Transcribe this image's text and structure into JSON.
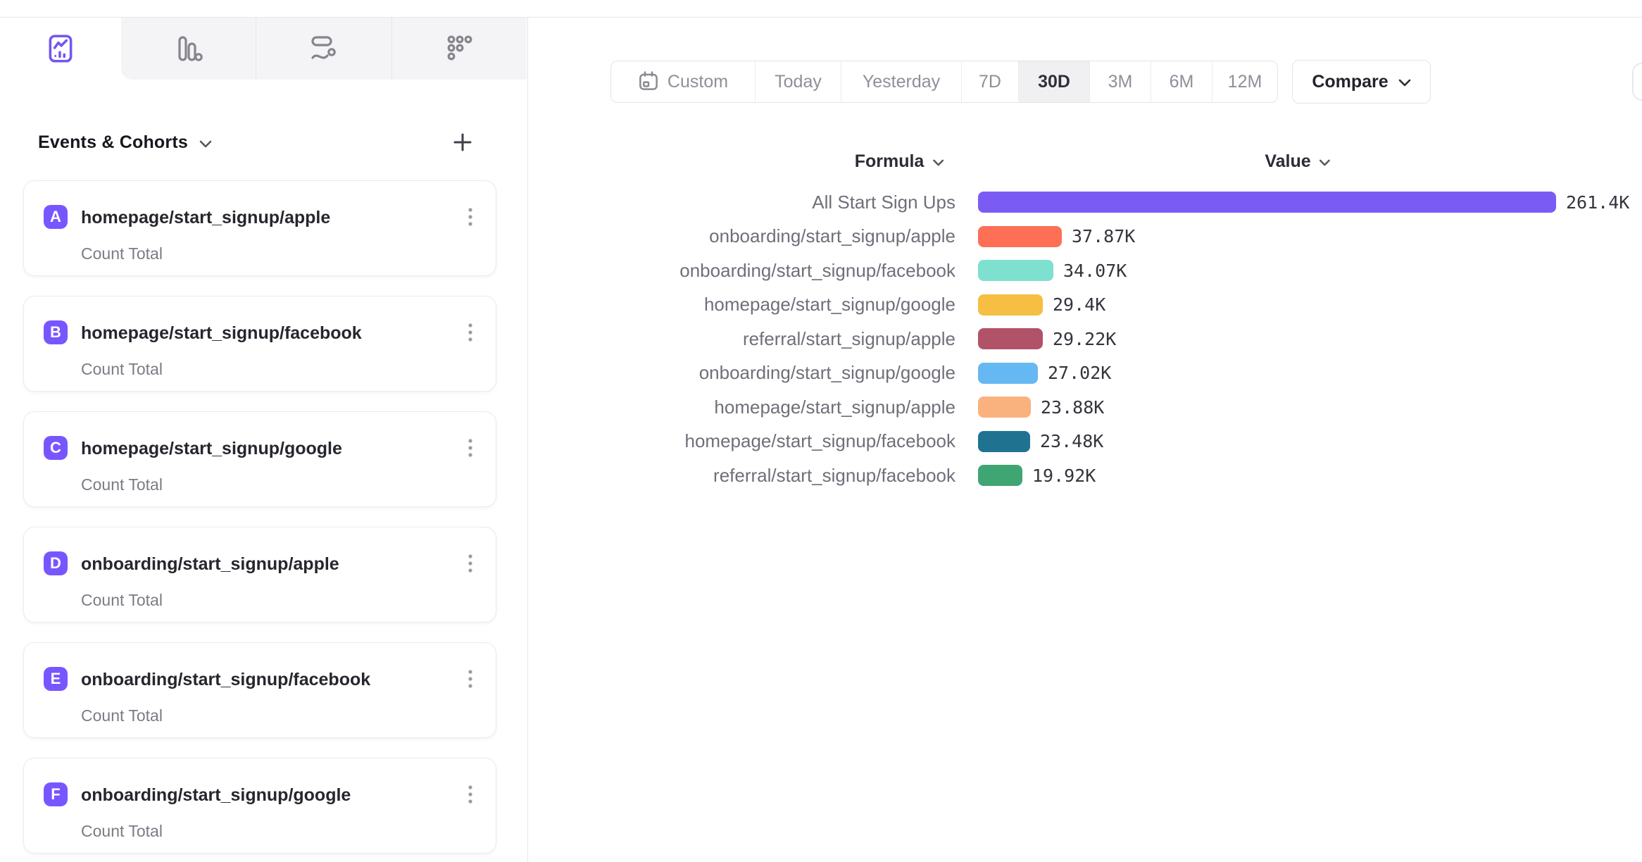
{
  "colors": {
    "accent": "#7856FF",
    "tab_strip_bg": "#f4f4f6",
    "border": "#e5e5e8",
    "selected_segment_bg": "#f0f0f2"
  },
  "tabs": [
    {
      "icon": "insights-line-chart-icon",
      "active": true
    },
    {
      "icon": "bar-report-icon",
      "active": false
    },
    {
      "icon": "flows-icon",
      "active": false
    },
    {
      "icon": "retention-dots-icon",
      "active": false
    }
  ],
  "sidebar": {
    "header": "Events & Cohorts",
    "header_chevron": "chevron-down-icon",
    "add_button": "plus-icon",
    "badge_color": "#7856FF",
    "cards": [
      {
        "letter": "A",
        "title": "homepage/start_signup/apple",
        "subtitle": "Count Total"
      },
      {
        "letter": "B",
        "title": "homepage/start_signup/facebook",
        "subtitle": "Count Total"
      },
      {
        "letter": "C",
        "title": "homepage/start_signup/google",
        "subtitle": "Count Total"
      },
      {
        "letter": "D",
        "title": "onboarding/start_signup/apple",
        "subtitle": "Count Total"
      },
      {
        "letter": "E",
        "title": "onboarding/start_signup/facebook",
        "subtitle": "Count Total"
      },
      {
        "letter": "F",
        "title": "onboarding/start_signup/google",
        "subtitle": "Count Total"
      }
    ]
  },
  "toolbar": {
    "date_ranges": [
      "Custom",
      "Today",
      "Yesterday",
      "7D",
      "30D",
      "3M",
      "6M",
      "12M"
    ],
    "selected_range": "30D",
    "custom_icon": "calendar-icon",
    "compare_label": "Compare"
  },
  "chart_data": {
    "type": "bar",
    "orientation": "horizontal",
    "column_headers": {
      "formula": "Formula",
      "value": "Value"
    },
    "categories": [
      "All Start Sign Ups",
      "onboarding/start_signup/apple",
      "onboarding/start_signup/facebook",
      "homepage/start_signup/google",
      "referral/start_signup/apple",
      "onboarding/start_signup/google",
      "homepage/start_signup/apple",
      "homepage/start_signup/facebook",
      "referral/start_signup/facebook"
    ],
    "values": [
      261400,
      37870,
      34070,
      29400,
      29220,
      27020,
      23880,
      23480,
      19920
    ],
    "value_labels": [
      "261.4K",
      "37.87K",
      "34.07K",
      "29.4K",
      "29.22K",
      "27.02K",
      "23.88K",
      "23.48K",
      "19.92K"
    ],
    "colors": [
      "#7A5CF5",
      "#FD7055",
      "#7EE0CE",
      "#F6BE42",
      "#B25268",
      "#66B8F2",
      "#F9B27E",
      "#1F7391",
      "#3FA573"
    ],
    "xlim": [
      0,
      261400
    ],
    "grid": false,
    "legend": "none"
  }
}
